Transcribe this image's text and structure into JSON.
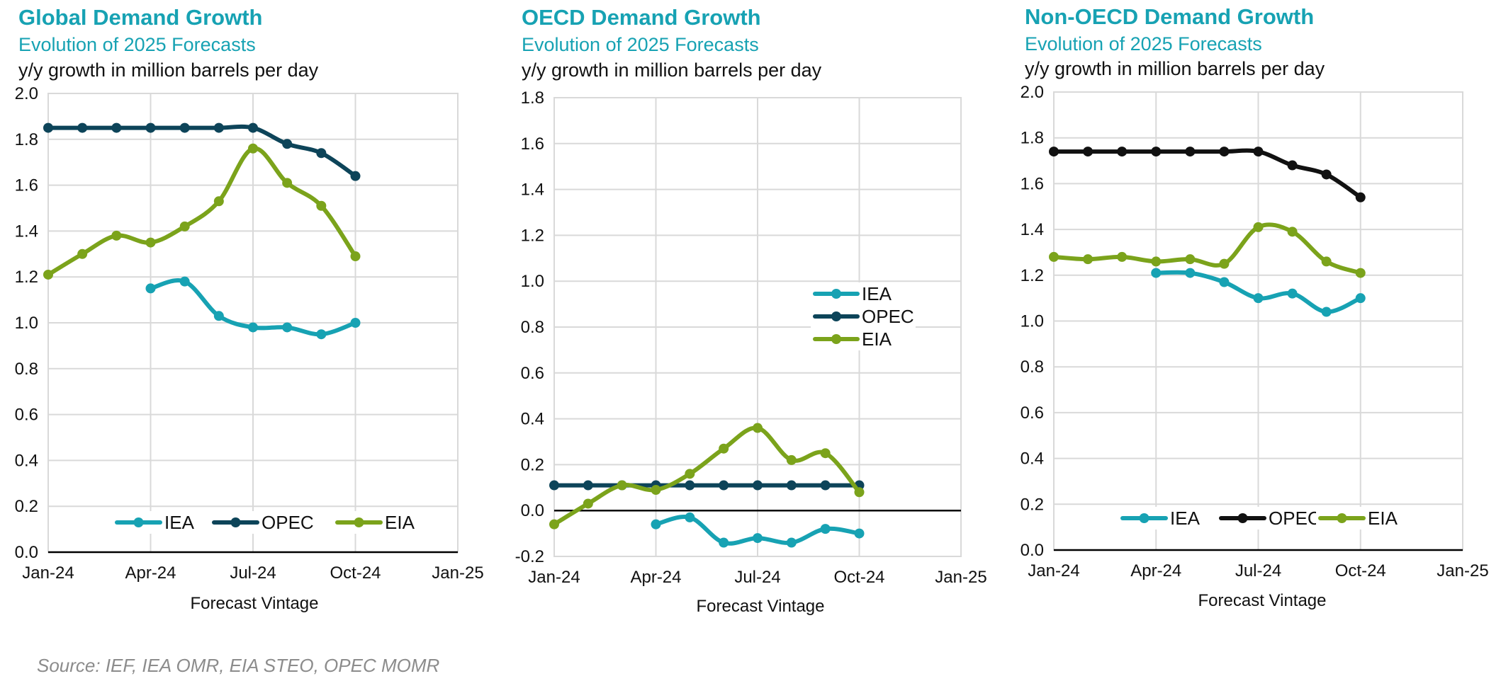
{
  "colors": {
    "iea": "#17a2b3",
    "opec": "#0d4459",
    "opec_nonoecd": "#111111",
    "eia": "#7ba31b",
    "title": "#17a2b3",
    "grid": "#d9d9d9"
  },
  "source": "Source: IEF, IEA OMR, EIA STEO, OPEC MOMR",
  "chart_data": [
    {
      "type": "line",
      "title": "Global Demand Growth",
      "subtitle": "Evolution of 2025 Forecasts",
      "unit_label": "y/y growth in million barrels per day",
      "xlabel": "Forecast Vintage",
      "xticks": [
        "Jan-24",
        "Apr-24",
        "Jul-24",
        "Oct-24",
        "Jan-25"
      ],
      "xlim": [
        0,
        12
      ],
      "yticks": [
        "0.0",
        "0.2",
        "0.4",
        "0.6",
        "0.8",
        "1.0",
        "1.2",
        "1.4",
        "1.6",
        "1.8",
        "2.0"
      ],
      "ylim": [
        0,
        2.0
      ],
      "legend_position": "bottom",
      "series": [
        {
          "name": "IEA",
          "color_key": "iea",
          "x": [
            3,
            4,
            5,
            6,
            7,
            8,
            9
          ],
          "values": [
            1.15,
            1.18,
            1.03,
            0.98,
            0.98,
            0.95,
            1.0
          ]
        },
        {
          "name": "OPEC",
          "color_key": "opec",
          "x": [
            0,
            1,
            2,
            3,
            4,
            5,
            6,
            7,
            8,
            9
          ],
          "values": [
            1.85,
            1.85,
            1.85,
            1.85,
            1.85,
            1.85,
            1.85,
            1.78,
            1.74,
            1.64
          ]
        },
        {
          "name": "EIA",
          "color_key": "eia",
          "x": [
            0,
            1,
            2,
            3,
            4,
            5,
            6,
            7,
            8,
            9
          ],
          "values": [
            1.21,
            1.3,
            1.38,
            1.35,
            1.42,
            1.53,
            1.76,
            1.61,
            1.51,
            1.29
          ]
        }
      ]
    },
    {
      "type": "line",
      "title": "OECD Demand Growth",
      "subtitle": "Evolution of 2025 Forecasts",
      "unit_label": "y/y growth in million barrels per day",
      "xlabel": "Forecast Vintage",
      "xticks": [
        "Jan-24",
        "Apr-24",
        "Jul-24",
        "Oct-24",
        "Jan-25"
      ],
      "xlim": [
        0,
        12
      ],
      "yticks": [
        "-0.2",
        "0.0",
        "0.2",
        "0.4",
        "0.6",
        "0.8",
        "1.0",
        "1.2",
        "1.4",
        "1.6",
        "1.8"
      ],
      "ylim": [
        -0.2,
        1.8
      ],
      "legend_position": "right-middle",
      "series": [
        {
          "name": "IEA",
          "color_key": "iea",
          "x": [
            3,
            4,
            5,
            6,
            7,
            8,
            9
          ],
          "values": [
            -0.06,
            -0.03,
            -0.14,
            -0.12,
            -0.14,
            -0.08,
            -0.1
          ]
        },
        {
          "name": "OPEC",
          "color_key": "opec",
          "x": [
            0,
            1,
            2,
            3,
            4,
            5,
            6,
            7,
            8,
            9
          ],
          "values": [
            0.11,
            0.11,
            0.11,
            0.11,
            0.11,
            0.11,
            0.11,
            0.11,
            0.11,
            0.11
          ]
        },
        {
          "name": "EIA",
          "color_key": "eia",
          "x": [
            0,
            1,
            2,
            3,
            4,
            5,
            6,
            7,
            8,
            9
          ],
          "values": [
            -0.06,
            0.03,
            0.11,
            0.09,
            0.16,
            0.27,
            0.36,
            0.22,
            0.25,
            0.08
          ]
        }
      ]
    },
    {
      "type": "line",
      "title": "Non-OECD Demand Growth",
      "subtitle": "Evolution of 2025 Forecasts",
      "unit_label": "y/y growth in million barrels per day",
      "xlabel": "Forecast Vintage",
      "xticks": [
        "Jan-24",
        "Apr-24",
        "Jul-24",
        "Oct-24",
        "Jan-25"
      ],
      "xlim": [
        0,
        12
      ],
      "yticks": [
        "0.0",
        "0.2",
        "0.4",
        "0.6",
        "0.8",
        "1.0",
        "1.2",
        "1.4",
        "1.6",
        "1.8",
        "2.0"
      ],
      "ylim": [
        0,
        2.0
      ],
      "legend_position": "bottom",
      "series": [
        {
          "name": "IEA",
          "color_key": "iea",
          "x": [
            3,
            4,
            5,
            6,
            7,
            8,
            9
          ],
          "values": [
            1.21,
            1.21,
            1.17,
            1.1,
            1.12,
            1.04,
            1.1
          ]
        },
        {
          "name": "OPEC",
          "color_key": "opec_nonoecd",
          "x": [
            0,
            1,
            2,
            3,
            4,
            5,
            6,
            7,
            8,
            9
          ],
          "values": [
            1.74,
            1.74,
            1.74,
            1.74,
            1.74,
            1.74,
            1.74,
            1.68,
            1.64,
            1.54
          ]
        },
        {
          "name": "EIA",
          "color_key": "eia",
          "x": [
            0,
            1,
            2,
            3,
            4,
            5,
            6,
            7,
            8,
            9
          ],
          "values": [
            1.28,
            1.27,
            1.28,
            1.26,
            1.27,
            1.25,
            1.41,
            1.39,
            1.26,
            1.21
          ]
        }
      ]
    }
  ]
}
